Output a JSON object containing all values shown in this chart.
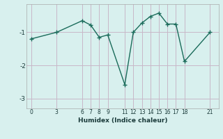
{
  "x": [
    0,
    3,
    6,
    7,
    8,
    9,
    11,
    12,
    13,
    14,
    15,
    16,
    17,
    18,
    21
  ],
  "y": [
    -1.2,
    -1.0,
    -0.65,
    -0.78,
    -1.15,
    -1.08,
    -2.58,
    -1.0,
    -0.72,
    -0.52,
    -0.42,
    -0.75,
    -0.75,
    -1.88,
    -1.0
  ],
  "xticks": [
    0,
    3,
    6,
    7,
    8,
    9,
    11,
    12,
    13,
    14,
    15,
    16,
    17,
    18,
    21
  ],
  "yticks": [
    -3,
    -2,
    -1
  ],
  "xlabel": "Humidex (Indice chaleur)",
  "ylim": [
    -3.3,
    -0.15
  ],
  "xlim": [
    -0.5,
    22.0
  ],
  "line_color": "#1a6b5a",
  "bg_color": "#d8f0ee",
  "grid_color": "#c8b8c8",
  "marker": "+",
  "marker_size": 4,
  "linewidth": 1.0
}
